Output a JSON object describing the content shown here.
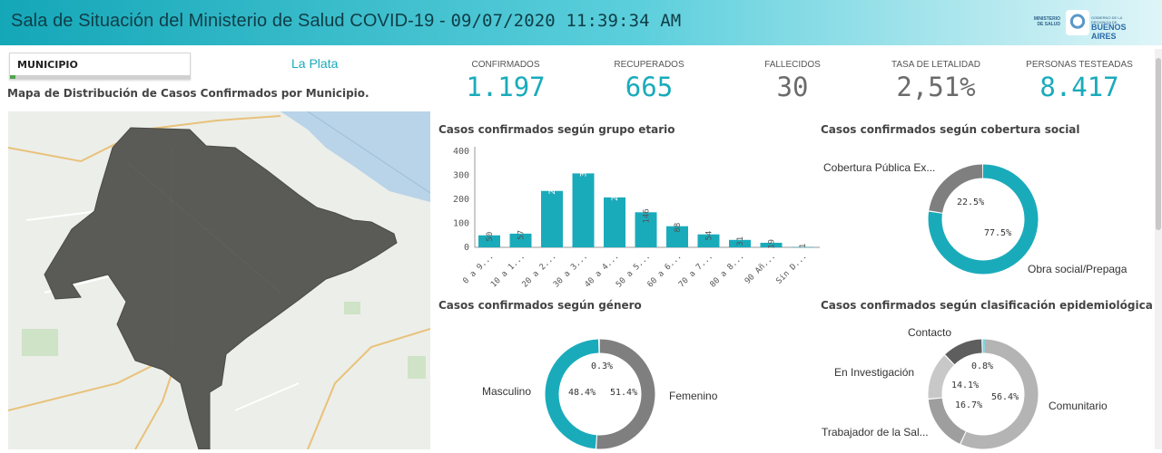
{
  "header": {
    "title": "Sala de Situación del Ministerio de Salud COVID-19 - ",
    "timestamp": "09/07/2020 11:39:34 AM",
    "logo_left": "MINISTERIO DE SALUD",
    "logo_small": "GOBIERNO DE LA PROVINCIA DE",
    "logo_big": "BUENOS AIRES"
  },
  "filter": {
    "label": "MUNICIPIO",
    "selected": "La Plata"
  },
  "map": {
    "title": "Mapa de Distribución de Casos Confirmados por Municipio."
  },
  "kpis": [
    {
      "label": "CONFIRMADOS",
      "value": "1.197",
      "color": "#1aabbb"
    },
    {
      "label": "RECUPERADOS",
      "value": "665",
      "color": "#1aabbb"
    },
    {
      "label": "FALLECIDOS",
      "value": "30",
      "color": "#6b6b6b"
    },
    {
      "label": "TASA DE LETALIDAD",
      "value": "2,51%",
      "color": "#6b6b6b"
    },
    {
      "label": "PERSONAS TESTEADAS",
      "value": "8.417",
      "color": "#1aabbb"
    }
  ],
  "colors": {
    "teal": "#1aabbb",
    "gray": "#7f7f7f",
    "light_gray": "#b4b4b4",
    "dark_gray": "#5e5e5e",
    "map_fill": "#5a5a57"
  },
  "chart_data": [
    {
      "type": "bar",
      "title": "Casos confirmados según grupo etario",
      "categories": [
        "0 a 9...",
        "10 a 1...",
        "20 a 2...",
        "30 a 3...",
        "40 a 4...",
        "50 a 5...",
        "60 a 6...",
        "70 a 7...",
        "80 a 8...",
        "90 Añ...",
        "Sin D..."
      ],
      "values": [
        50,
        57,
        235,
        308,
        208,
        146,
        88,
        54,
        31,
        19,
        1
      ],
      "yticks": [
        0,
        100,
        200,
        300,
        400
      ],
      "ylim": [
        0,
        400
      ],
      "grid": false
    },
    {
      "type": "pie",
      "title": "Casos confirmados según cobertura social",
      "slices": [
        {
          "label": "Obra social/Prepaga",
          "value": 77.5,
          "pct_label": "77.5%"
        },
        {
          "label": "Cobertura Pública Ex...",
          "value": 22.5,
          "pct_label": "22.5%"
        }
      ]
    },
    {
      "type": "pie",
      "title": "Casos confirmados según género",
      "slices": [
        {
          "label": "Masculino",
          "value": 48.4,
          "pct_label": "48.4%"
        },
        {
          "label": "Femenino",
          "value": 51.4,
          "pct_label": "51.4%"
        },
        {
          "label": "",
          "value": 0.3,
          "pct_label": "0.3%"
        }
      ]
    },
    {
      "type": "pie",
      "title": "Casos confirmados según clasificación epidemiológica",
      "slices": [
        {
          "label": "Comunitario",
          "value": 56.4,
          "pct_label": "56.4%"
        },
        {
          "label": "Trabajador de la Sal...",
          "value": 16.7,
          "pct_label": "16.7%"
        },
        {
          "label": "En Investigación",
          "value": 14.1,
          "pct_label": "14.1%"
        },
        {
          "label": "Contacto",
          "value": 12.0,
          "pct_label": ""
        },
        {
          "label": "",
          "value": 0.8,
          "pct_label": "0.8%"
        }
      ]
    }
  ]
}
